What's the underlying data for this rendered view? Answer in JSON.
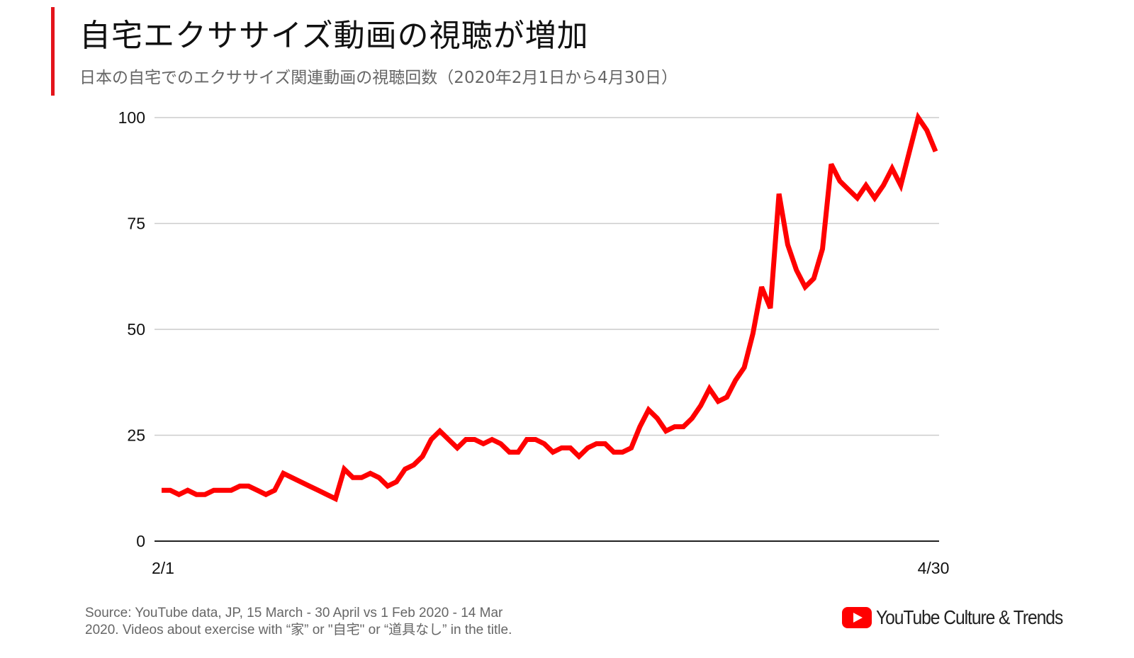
{
  "header": {
    "title": "自宅エクササイズ動画の視聴が増加",
    "subtitle": "日本の自宅でのエクササイズ関連動画の視聴回数（2020年2月1日から4月30日）"
  },
  "footer": {
    "source": "Source: YouTube data, JP, 15 March - 30 April vs 1 Feb 2020 - 14 Mar 2020. Videos about exercise with “家” or \"自宅\" or “道具なし” in the title.",
    "brand": "YouTube Culture & Trends",
    "brand_icon": "youtube-play-icon"
  },
  "colors": {
    "accent": "#e3141b",
    "line": "#ff0000",
    "grid": "#cccccc",
    "axis": "#222222"
  },
  "chart_data": {
    "type": "line",
    "title": "自宅エクササイズ動画の視聴が増加",
    "xlabel": "",
    "ylabel": "",
    "ylim": [
      0,
      100
    ],
    "yticks": [
      "0",
      "25",
      "50",
      "75",
      "100"
    ],
    "xtick_labels": [
      "2/1",
      "4/30"
    ],
    "grid": true,
    "legend": "none",
    "values": [
      12,
      12,
      11,
      12,
      11,
      11,
      12,
      12,
      12,
      13,
      13,
      12,
      11,
      12,
      16,
      15,
      14,
      13,
      12,
      11,
      10,
      17,
      15,
      15,
      16,
      15,
      13,
      14,
      17,
      18,
      20,
      24,
      26,
      24,
      22,
      24,
      24,
      23,
      24,
      23,
      21,
      21,
      24,
      24,
      23,
      21,
      22,
      22,
      20,
      22,
      23,
      23,
      21,
      21,
      22,
      27,
      31,
      29,
      26,
      27,
      27,
      29,
      32,
      36,
      33,
      34,
      38,
      41,
      49,
      60,
      55,
      82,
      70,
      64,
      60,
      62,
      69,
      89,
      85,
      83,
      81,
      84,
      81,
      84,
      88,
      84,
      92,
      100,
      97,
      92
    ]
  }
}
